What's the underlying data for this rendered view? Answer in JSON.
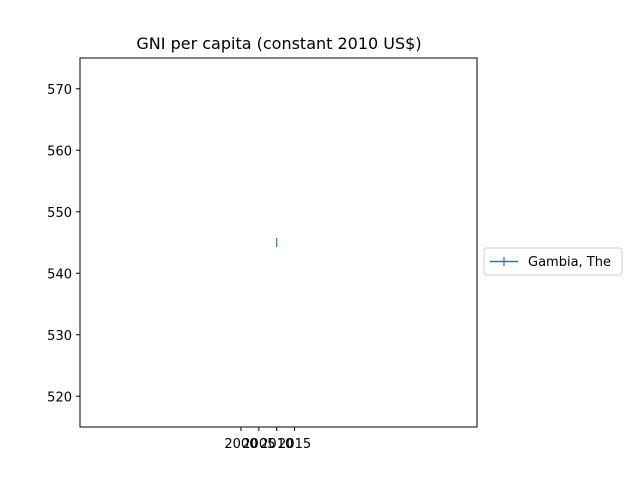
{
  "chart_data": {
    "type": "line",
    "title": "GNI per capita (constant 2010 US$)",
    "xlabel": "",
    "ylabel": "",
    "x_ticks": [
      "2000",
      "2005",
      "2010",
      "2015"
    ],
    "y_ticks": [
      520,
      530,
      540,
      550,
      560,
      570
    ],
    "xlim": [
      1955,
      2066
    ],
    "ylim": [
      515,
      575
    ],
    "series": [
      {
        "name": "Gambia, The",
        "color": "#1f77b4",
        "marker": "vline",
        "x": [
          2010
        ],
        "y": [
          545
        ]
      }
    ],
    "legend": {
      "placement": "right-outside"
    },
    "grid": false
  }
}
